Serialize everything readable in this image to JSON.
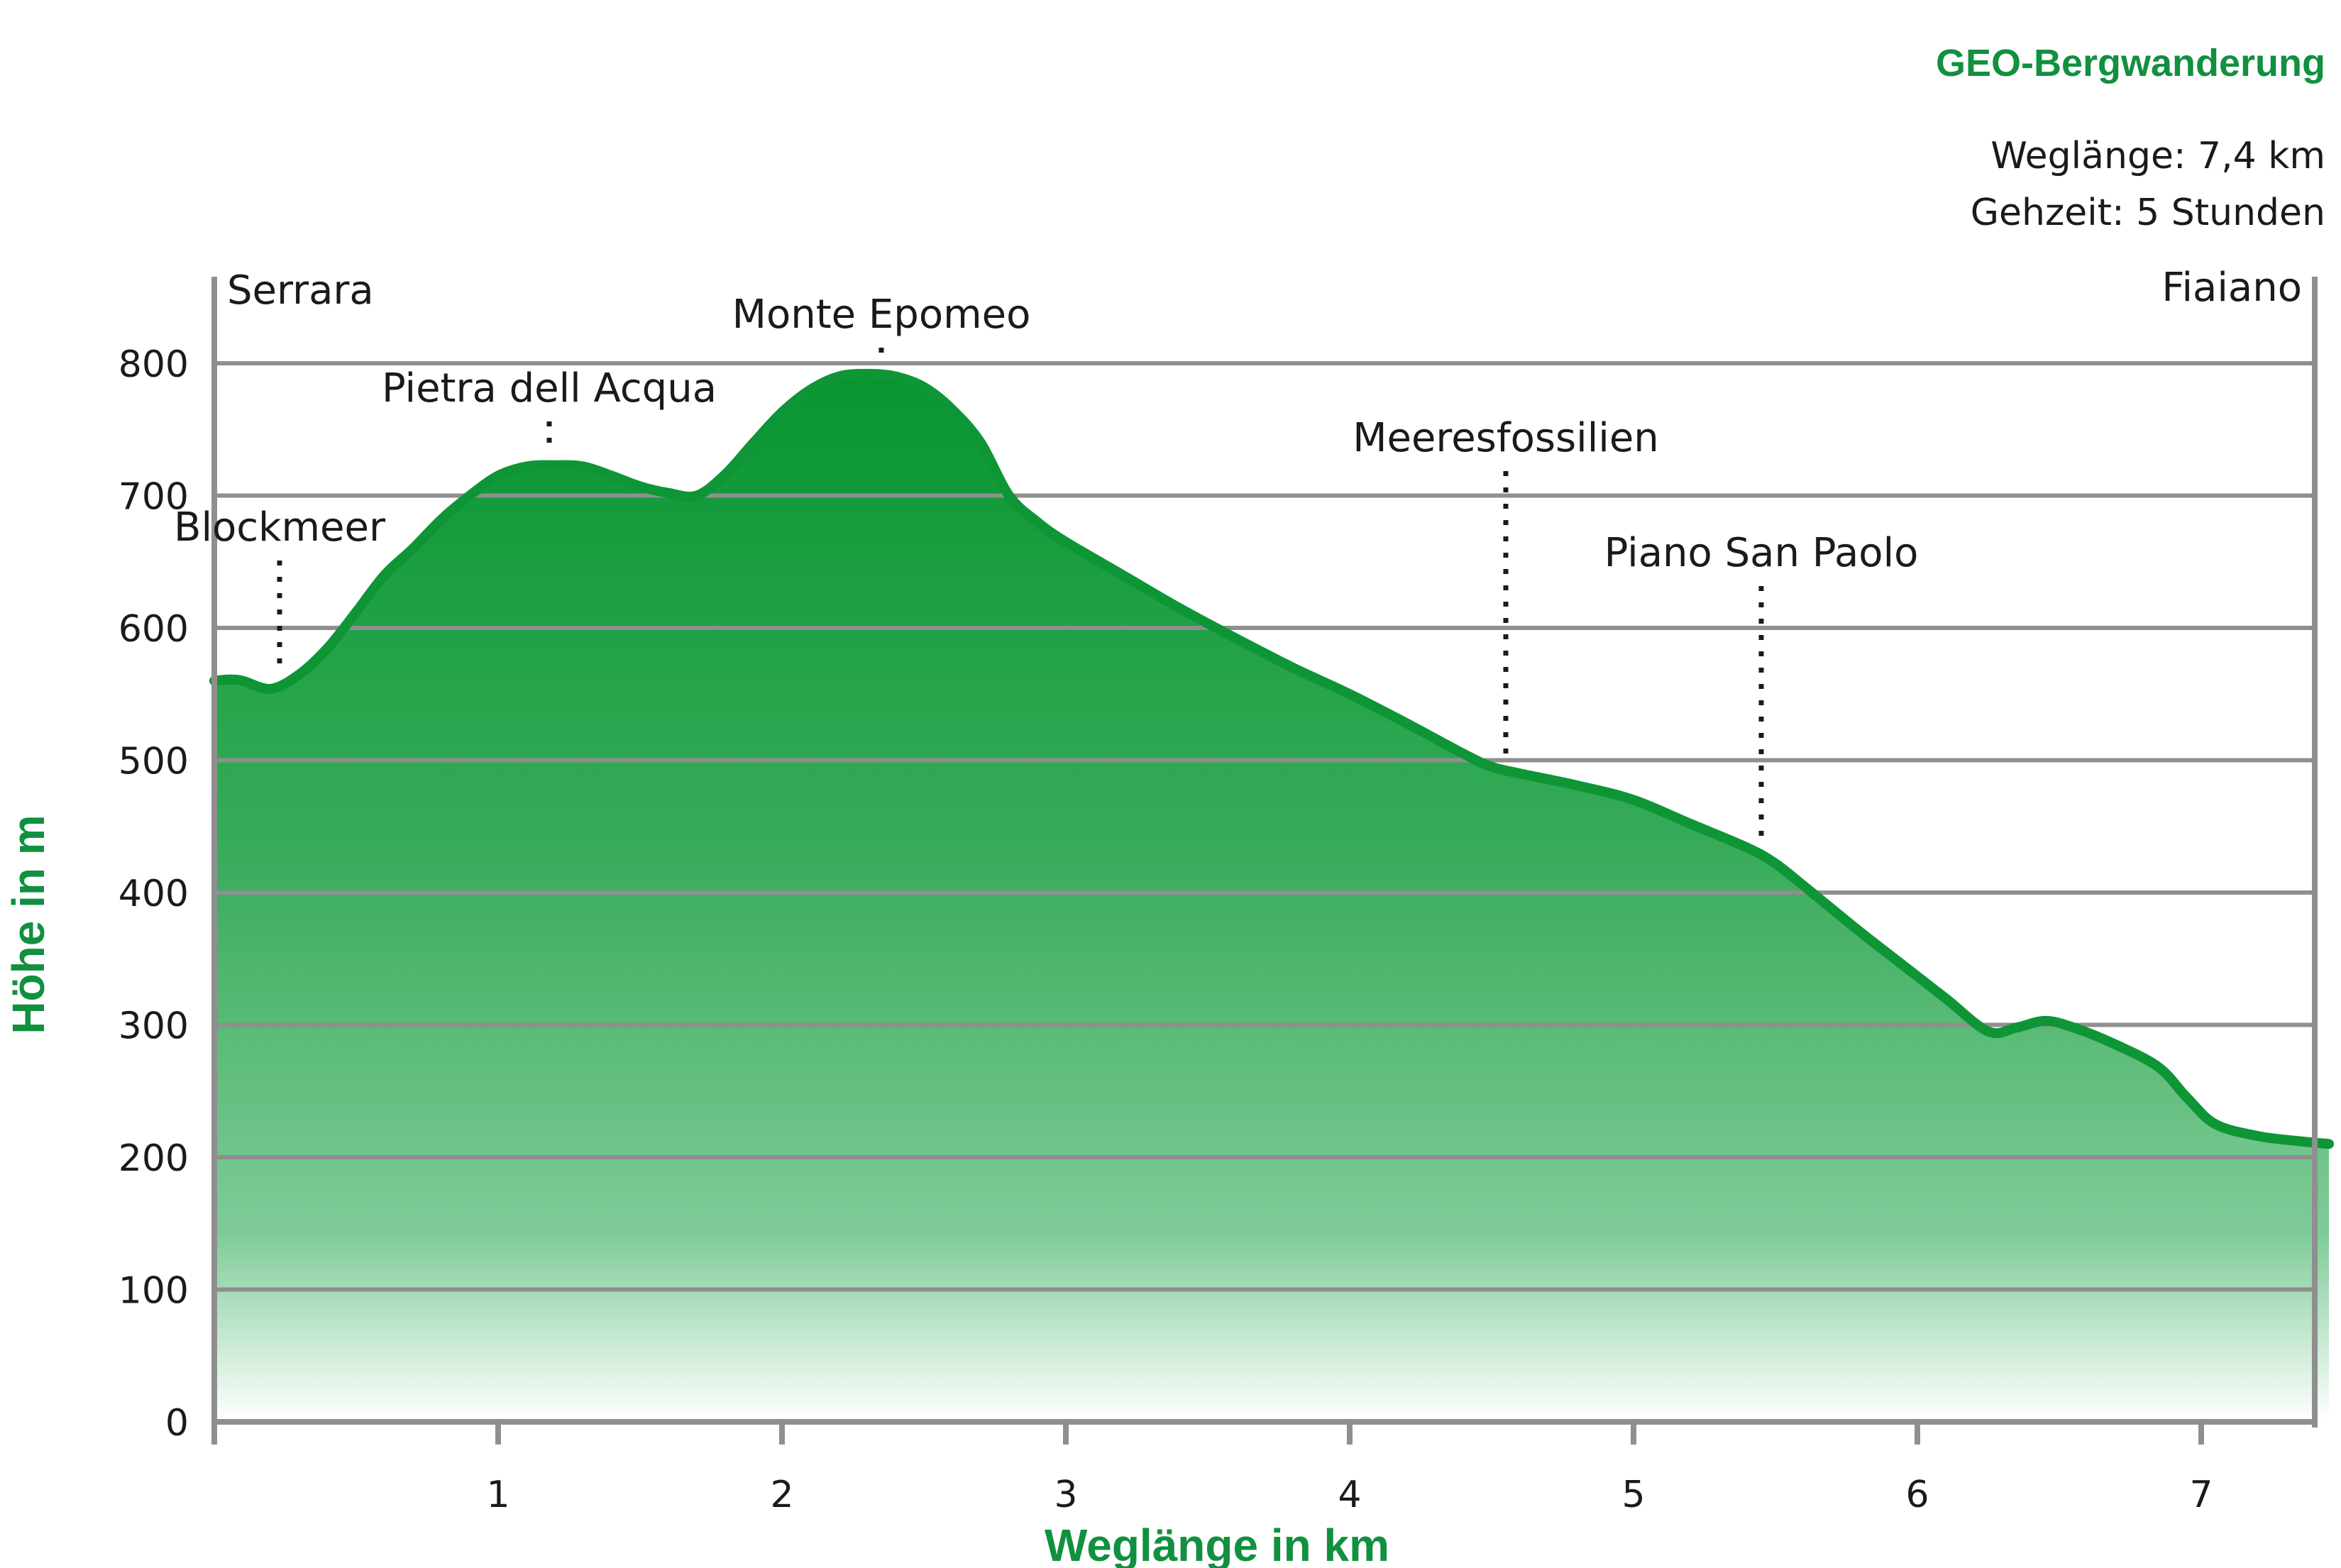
{
  "chart_data": {
    "type": "area",
    "title": "GEO-Bergwanderung",
    "info": {
      "distance": "Weglänge: 7,4 km",
      "duration": "Gehzeit: 5 Stunden"
    },
    "xlabel": "Weglänge in km",
    "ylabel": "Höhe in m",
    "xlim": [
      0,
      7.45
    ],
    "ylim": [
      0,
      800
    ],
    "x_ticks": [
      "1",
      "2",
      "3",
      "4",
      "5",
      "6",
      "7"
    ],
    "y_ticks": [
      "0",
      "100",
      "200",
      "300",
      "400",
      "500",
      "600",
      "700",
      "800"
    ],
    "grid": "horizontal",
    "colors": {
      "fill_top": "#07952f",
      "fill_bottom": "#ffffff",
      "line": "#0e9535",
      "grid": "#8f8f8f",
      "accent": "#119040"
    },
    "profile": {
      "x": [
        0,
        0.05,
        0.1,
        0.2,
        0.3,
        0.4,
        0.5,
        0.6,
        0.7,
        0.8,
        0.9,
        1.0,
        1.1,
        1.2,
        1.3,
        1.4,
        1.5,
        1.6,
        1.7,
        1.8,
        1.9,
        2.0,
        2.1,
        2.2,
        2.3,
        2.4,
        2.5,
        2.6,
        2.7,
        2.8,
        2.9,
        3.0,
        3.2,
        3.4,
        3.6,
        3.8,
        4.0,
        4.2,
        4.4,
        4.5,
        4.6,
        4.8,
        5.0,
        5.2,
        5.4,
        5.5,
        5.6,
        5.8,
        5.95,
        6.1,
        6.25,
        6.35,
        6.45,
        6.55,
        6.7,
        6.85,
        6.95,
        7.05,
        7.2,
        7.35,
        7.45
      ],
      "y": [
        560,
        561,
        560,
        554,
        565,
        585,
        612,
        640,
        660,
        682,
        700,
        715,
        722,
        723,
        722,
        715,
        707,
        702,
        700,
        716,
        740,
        763,
        780,
        790,
        792,
        790,
        782,
        765,
        740,
        700,
        680,
        665,
        640,
        615,
        592,
        570,
        550,
        528,
        505,
        495,
        490,
        481,
        470,
        452,
        434,
        422,
        405,
        370,
        345,
        320,
        295,
        298,
        303,
        298,
        285,
        268,
        245,
        225,
        216,
        212,
        210
      ]
    },
    "start_label": "Serrara",
    "end_label": "Fiaiano",
    "annotations": [
      {
        "label": "Blockmeer",
        "x": 0.23
      },
      {
        "label": "Pietra dell Acqua",
        "x": 1.18
      },
      {
        "label": "Monte Epomeo",
        "x": 2.35
      },
      {
        "label": "Meeresfossilien",
        "x": 4.55
      },
      {
        "label": "Piano San Paolo",
        "x": 5.45
      }
    ]
  }
}
